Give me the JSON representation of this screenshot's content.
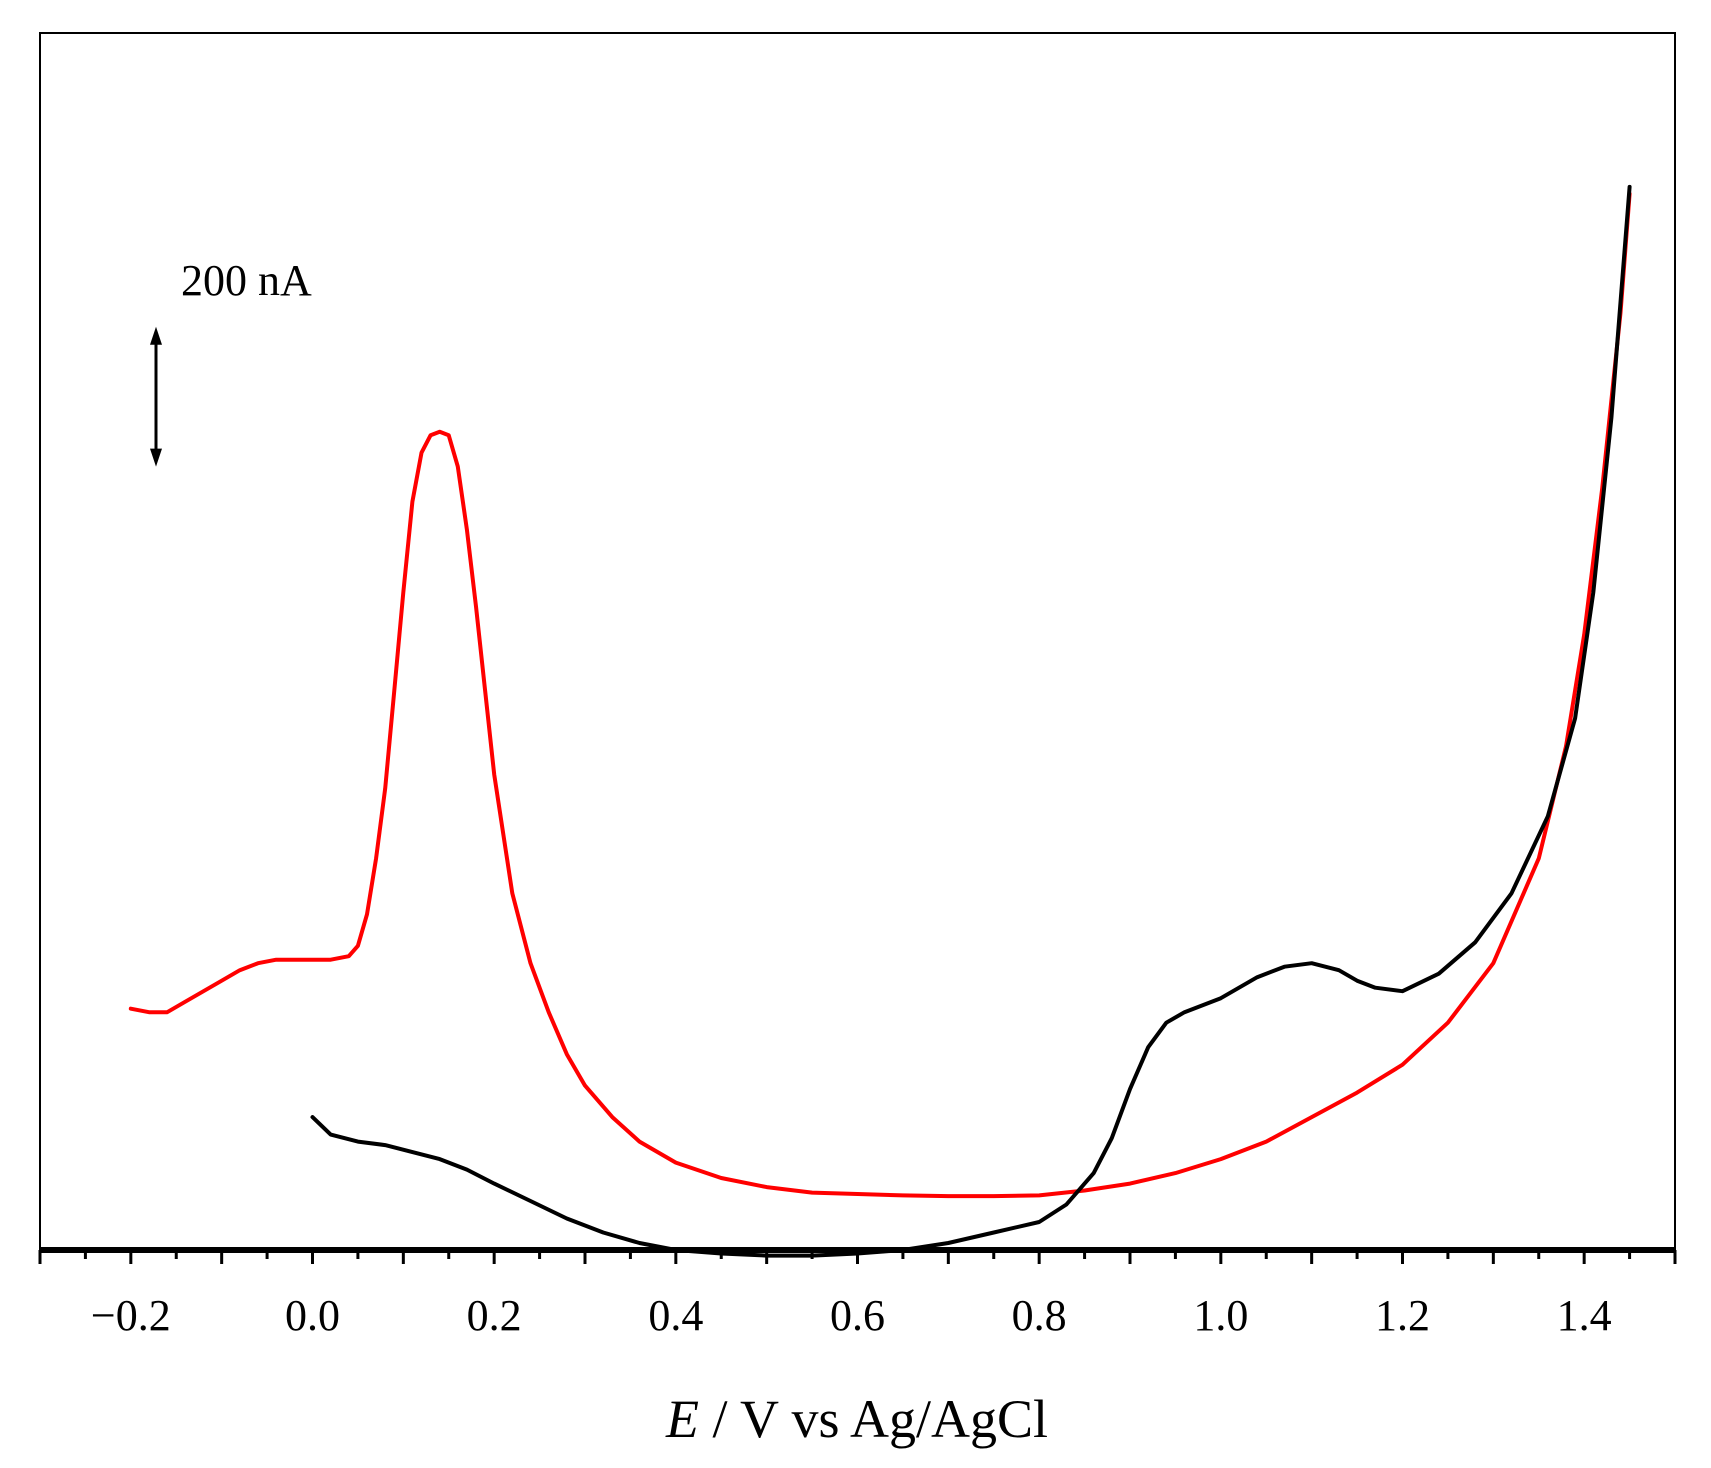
{
  "chart_data": {
    "type": "line",
    "title": "",
    "xlabel": {
      "italic_part": "E",
      "rest": " / V vs Ag/AgCl"
    },
    "ylabel": "",
    "xlim": [
      -0.3,
      1.5
    ],
    "x_ticks": [
      -0.2,
      0.0,
      0.2,
      0.4,
      0.6,
      0.8,
      1.0,
      1.2,
      1.4
    ],
    "x_tick_labels": [
      "−0.2",
      "0.0",
      "0.2",
      "0.4",
      "0.6",
      "0.8",
      "1.0",
      "1.2",
      "1.4"
    ],
    "y_unit": "nA",
    "ylim_nA": [
      -40,
      1700
    ],
    "grid": false,
    "legend": "none",
    "scale_bar": {
      "label": "200 nA",
      "value_nA": 200,
      "from_nA": 1080,
      "to_nA": 1280
    },
    "series": [
      {
        "name": "red trace",
        "color": "#ff0000",
        "x": [
          -0.2,
          -0.18,
          -0.16,
          -0.14,
          -0.12,
          -0.1,
          -0.08,
          -0.06,
          -0.04,
          -0.02,
          0.0,
          0.02,
          0.04,
          0.05,
          0.06,
          0.07,
          0.08,
          0.09,
          0.1,
          0.11,
          0.12,
          0.13,
          0.14,
          0.15,
          0.16,
          0.17,
          0.18,
          0.19,
          0.2,
          0.22,
          0.24,
          0.26,
          0.28,
          0.3,
          0.33,
          0.36,
          0.4,
          0.45,
          0.5,
          0.55,
          0.6,
          0.65,
          0.7,
          0.75,
          0.8,
          0.85,
          0.9,
          0.95,
          1.0,
          1.05,
          1.1,
          1.15,
          1.2,
          1.25,
          1.3,
          1.35,
          1.38,
          1.4,
          1.42,
          1.44,
          1.45
        ],
        "y": [
          305,
          300,
          300,
          315,
          330,
          345,
          360,
          370,
          375,
          375,
          375,
          375,
          380,
          395,
          440,
          520,
          620,
          760,
          900,
          1030,
          1100,
          1125,
          1130,
          1125,
          1080,
          990,
          880,
          760,
          640,
          470,
          370,
          300,
          240,
          195,
          150,
          115,
          85,
          63,
          50,
          42,
          40,
          38,
          37,
          37,
          38,
          45,
          55,
          70,
          90,
          115,
          150,
          185,
          225,
          285,
          370,
          520,
          680,
          840,
          1050,
          1300,
          1470
        ]
      },
      {
        "name": "black trace",
        "color": "#000000",
        "x": [
          0.0,
          0.02,
          0.05,
          0.08,
          0.11,
          0.14,
          0.17,
          0.2,
          0.24,
          0.28,
          0.32,
          0.36,
          0.4,
          0.45,
          0.5,
          0.55,
          0.6,
          0.65,
          0.7,
          0.75,
          0.8,
          0.83,
          0.86,
          0.88,
          0.9,
          0.92,
          0.94,
          0.96,
          1.0,
          1.04,
          1.07,
          1.1,
          1.13,
          1.15,
          1.17,
          1.2,
          1.24,
          1.28,
          1.32,
          1.36,
          1.39,
          1.41,
          1.43,
          1.45
        ],
        "y": [
          150,
          125,
          115,
          110,
          100,
          90,
          75,
          55,
          30,
          5,
          -15,
          -30,
          -40,
          -45,
          -48,
          -48,
          -45,
          -40,
          -30,
          -15,
          0,
          25,
          70,
          120,
          190,
          250,
          285,
          300,
          320,
          350,
          365,
          370,
          360,
          345,
          335,
          330,
          355,
          400,
          470,
          580,
          720,
          900,
          1150,
          1480
        ]
      }
    ]
  }
}
